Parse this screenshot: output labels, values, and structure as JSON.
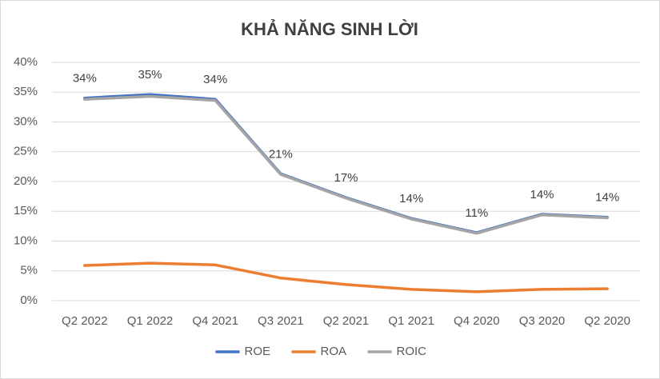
{
  "chart_data": {
    "type": "line",
    "title": "KHẢ NĂNG SINH LỜI",
    "categories": [
      "Q2 2022",
      "Q1 2022",
      "Q4 2021",
      "Q3 2021",
      "Q2 2021",
      "Q1 2021",
      "Q4 2020",
      "Q3 2020",
      "Q2 2020"
    ],
    "series": [
      {
        "name": "ROE",
        "color": "#4472c4",
        "values": [
          34.0,
          34.6,
          33.8,
          21.3,
          17.3,
          13.8,
          11.4,
          14.5,
          14.0
        ],
        "value_labels": [
          "34%",
          "35%",
          "34%",
          "21%",
          "17%",
          "14%",
          "11%",
          "14%",
          "14%"
        ]
      },
      {
        "name": "ROA",
        "color": "#ed7d31",
        "values": [
          5.9,
          6.3,
          6.0,
          3.8,
          2.7,
          1.9,
          1.5,
          1.9,
          2.0
        ]
      },
      {
        "name": "ROIC",
        "color": "#a5a5a5",
        "values": [
          33.8,
          34.3,
          33.6,
          21.2,
          17.2,
          13.7,
          11.3,
          14.4,
          13.9
        ]
      }
    ],
    "ylim": [
      0,
      40
    ],
    "yticks": [
      {
        "value": 0,
        "label": "0%"
      },
      {
        "value": 5,
        "label": "5%"
      },
      {
        "value": 10,
        "label": "10%"
      },
      {
        "value": 15,
        "label": "15%"
      },
      {
        "value": 20,
        "label": "20%"
      },
      {
        "value": 25,
        "label": "25%"
      },
      {
        "value": 30,
        "label": "30%"
      },
      {
        "value": 35,
        "label": "35%"
      },
      {
        "value": 40,
        "label": "40%"
      }
    ],
    "grid": true,
    "legend": "bottom"
  }
}
